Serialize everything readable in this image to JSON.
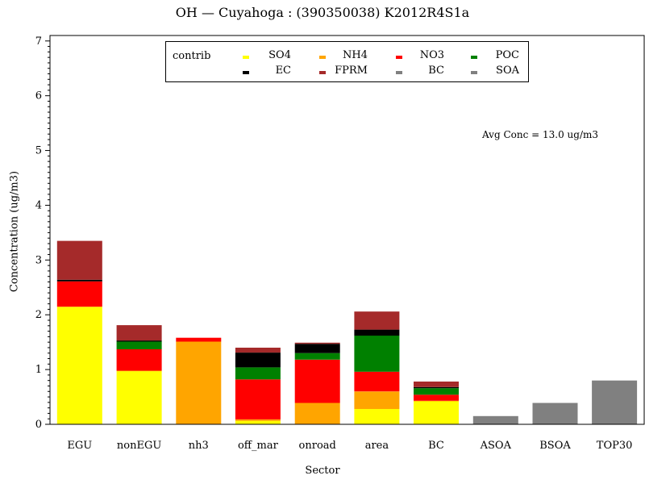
{
  "title": "OH  —  Cuyahoga  :  (390350038)  K2012R4S1a",
  "annotation": "Avg Conc  =  13.0 ug/m3",
  "legend": {
    "title": "contrib",
    "items": [
      {
        "label": "SO4",
        "color": "#ffff00"
      },
      {
        "label": "NH4",
        "color": "#ffa500"
      },
      {
        "label": "NO3",
        "color": "#ff0000"
      },
      {
        "label": "POC",
        "color": "#008000"
      },
      {
        "label": "EC",
        "color": "#000000"
      },
      {
        "label": "FPRM",
        "color": "#a52a2a"
      },
      {
        "label": "BC",
        "color": "#808080"
      },
      {
        "label": "SOA",
        "color": "#808080"
      }
    ]
  },
  "chart_data": {
    "type": "bar",
    "stacked": true,
    "title": "OH  —  Cuyahoga  :  (390350038)  K2012R4S1a",
    "xlabel": "Sector",
    "ylabel": "Concentration (ug/m3)",
    "ylim": [
      0,
      7.1
    ],
    "yticks": [
      "0",
      "1",
      "2",
      "3",
      "4",
      "5",
      "6",
      "7"
    ],
    "legend_position": "top",
    "categories": [
      "EGU",
      "nonEGU",
      "nh3",
      "off_mar",
      "onroad",
      "area",
      "BC",
      "ASOA",
      "BSOA",
      "TOP30"
    ],
    "series": [
      {
        "name": "SO4",
        "color": "#ffff00",
        "values": [
          2.14,
          0.97,
          0,
          0.06,
          0,
          0.28,
          0.42,
          0,
          0,
          0
        ]
      },
      {
        "name": "NH4",
        "color": "#ffa500",
        "values": [
          0.01,
          0.01,
          1.51,
          0.03,
          0.39,
          0.32,
          0.01,
          0,
          0,
          0
        ]
      },
      {
        "name": "NO3",
        "color": "#ff0000",
        "values": [
          0.46,
          0.39,
          0.07,
          0.73,
          0.79,
          0.36,
          0.11,
          0,
          0,
          0
        ]
      },
      {
        "name": "POC",
        "color": "#008000",
        "values": [
          0,
          0.14,
          0,
          0.22,
          0.12,
          0.66,
          0.12,
          0,
          0,
          0
        ]
      },
      {
        "name": "EC",
        "color": "#000000",
        "values": [
          0.03,
          0.02,
          0,
          0.27,
          0.17,
          0.11,
          0.02,
          0,
          0,
          0
        ]
      },
      {
        "name": "FPRM",
        "color": "#a52a2a",
        "values": [
          0.71,
          0.28,
          0,
          0.09,
          0.02,
          0.33,
          0.1,
          0,
          0,
          0
        ]
      },
      {
        "name": "BC",
        "color": "#808080",
        "values": [
          0,
          0,
          0,
          0,
          0,
          0,
          0,
          0,
          0,
          0
        ]
      },
      {
        "name": "SOA",
        "color": "#808080",
        "values": [
          0,
          0,
          0,
          0,
          0,
          0,
          0,
          0.15,
          0.39,
          0.8
        ]
      }
    ]
  }
}
